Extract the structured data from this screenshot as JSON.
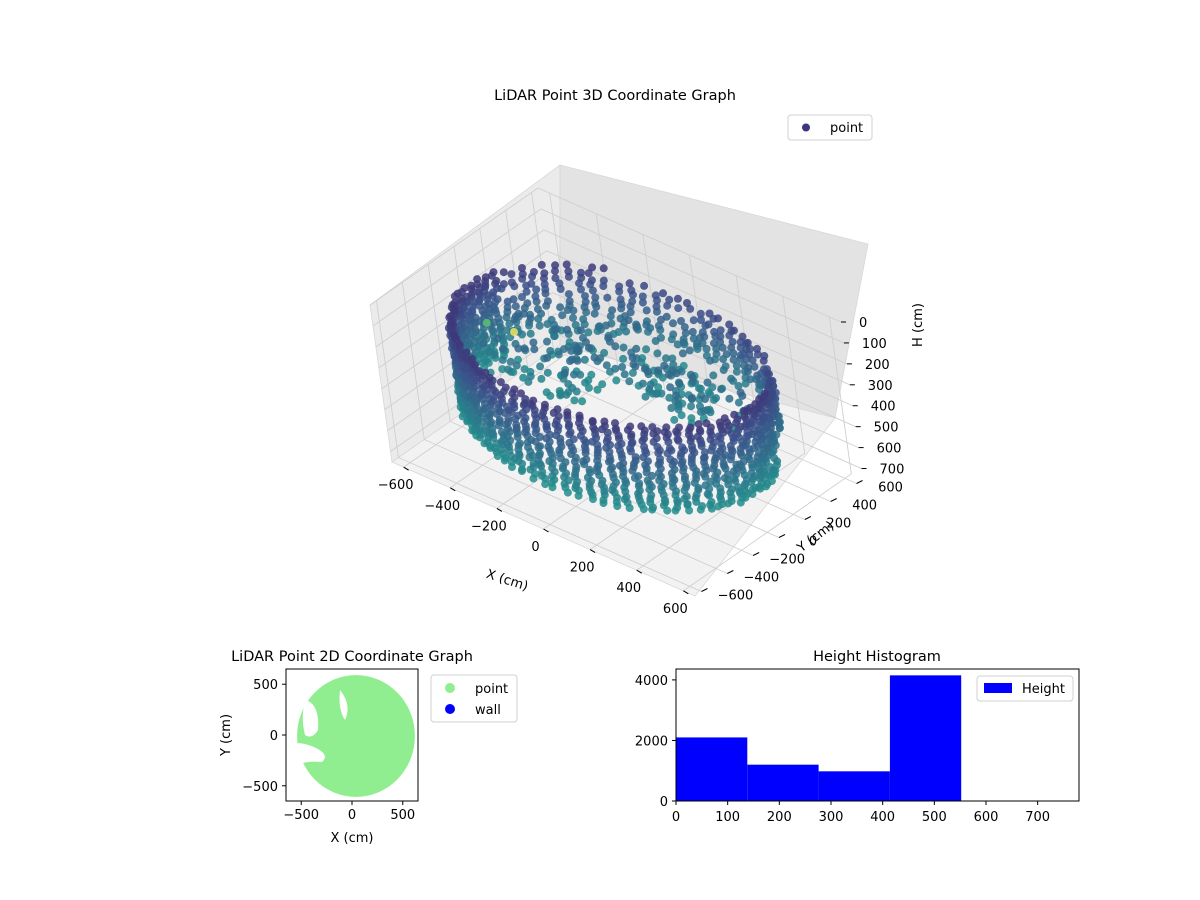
{
  "chart_data": [
    {
      "type": "scatter",
      "projection": "3d",
      "title": "LiDAR Point 3D Coordinate Graph",
      "xlabel": "X (cm)",
      "ylabel": "Y (cm)",
      "zlabel": "H (cm)",
      "xticks": [
        "−600",
        "−400",
        "−200",
        "0",
        "200",
        "400",
        "600"
      ],
      "yticks": [
        "−600",
        "−400",
        "−200",
        "0",
        "200",
        "400",
        "600"
      ],
      "zticks": [
        "0",
        "100",
        "200",
        "300",
        "400",
        "500",
        "600",
        "700"
      ],
      "xlim": [
        -650,
        650
      ],
      "ylim": [
        -650,
        650
      ],
      "zlim": [
        0,
        750
      ],
      "z_inverted": true,
      "grid": true,
      "legend": {
        "entries": [
          "point"
        ],
        "placement": "top-right"
      },
      "colormap": "viridis",
      "series": [
        {
          "name": "point",
          "color": "#3b3680",
          "description_of_shape": "ring of points around room wall, dense wall arc in front",
          "ring_radius_cm": 600,
          "height_range_cm": [
            0,
            550
          ]
        }
      ],
      "outliers": [
        {
          "x": -640,
          "y": 140,
          "h": 420,
          "color": "#5cc26e"
        },
        {
          "x": -560,
          "y": 200,
          "h": 450,
          "color": "#ece55a"
        }
      ]
    },
    {
      "type": "scatter",
      "title": "LiDAR Point 2D Coordinate Graph",
      "xlabel": "X (cm)",
      "ylabel": "Y (cm)",
      "xticks": [
        "−500",
        "0",
        "500"
      ],
      "yticks": [
        "−500",
        "0",
        "500"
      ],
      "xlim": [
        -650,
        650
      ],
      "ylim": [
        -650,
        650
      ],
      "legend": {
        "entries": [
          "point",
          "wall"
        ],
        "placement": "outside-right"
      },
      "series": [
        {
          "name": "point",
          "color": "#90ee90",
          "shape": "filled disc, radius approx 600 cm"
        },
        {
          "name": "wall",
          "color": "#0000ff",
          "shape": "none visible"
        }
      ]
    },
    {
      "type": "bar",
      "subtype": "histogram",
      "title": "Height Histogram",
      "xlabel": "",
      "ylabel": "",
      "bin_edges": [
        0,
        138,
        276,
        414,
        552,
        690
      ],
      "values": [
        2100,
        1200,
        980,
        4150,
        0
      ],
      "color": "#0000ff",
      "xticks": [
        "0",
        "100",
        "200",
        "300",
        "400",
        "500",
        "600",
        "700"
      ],
      "yticks": [
        "0",
        "2000",
        "4000"
      ],
      "xlim": [
        0,
        780
      ],
      "ylim": [
        0,
        4360
      ],
      "legend": {
        "entries": [
          "Height"
        ],
        "placement": "top-right"
      }
    }
  ]
}
